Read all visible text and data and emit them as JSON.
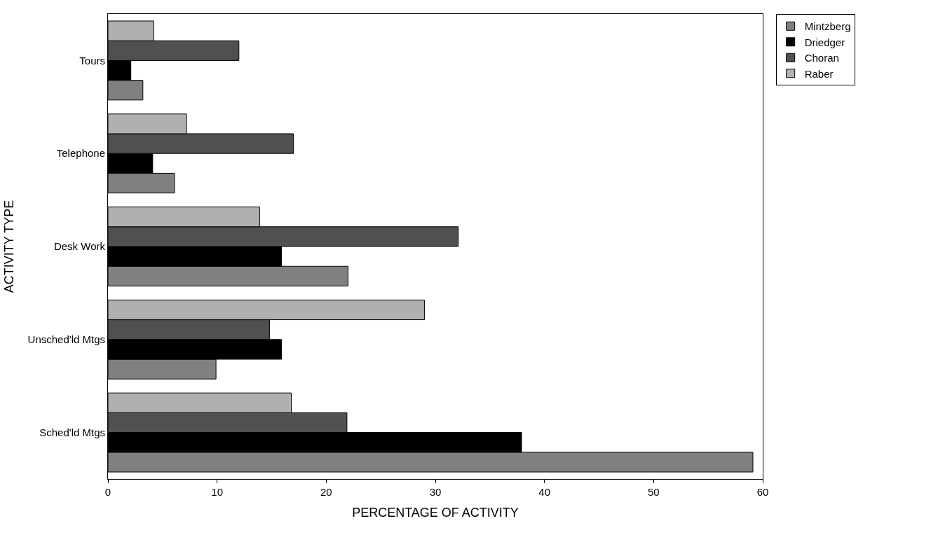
{
  "chart_data": {
    "type": "bar",
    "orientation": "horizontal",
    "xlabel": "PERCENTAGE OF ACTIVITY",
    "ylabel": "ACTIVITY TYPE",
    "categories": [
      "Tours",
      "Telephone",
      "Desk Work",
      "Unsched'ld Mtgs",
      "Sched'ld Mtgs"
    ],
    "series": [
      {
        "name": "Mintzberg",
        "color": "#808080",
        "values": [
          3.2,
          6.1,
          22.0,
          9.9,
          59.1
        ]
      },
      {
        "name": "Driedger",
        "color": "#000000",
        "values": [
          2.1,
          4.1,
          15.9,
          15.9,
          37.9
        ]
      },
      {
        "name": "Choran",
        "color": "#505050",
        "values": [
          12.0,
          17.0,
          32.1,
          14.8,
          21.9
        ]
      },
      {
        "name": "Raber",
        "color": "#b0b0b0",
        "values": [
          4.2,
          7.2,
          13.9,
          29.0,
          16.8
        ]
      }
    ],
    "xlim": [
      0,
      60
    ],
    "xticks": [
      0,
      {
        "value": 10,
        "label": "10"
      },
      20,
      {
        "value": 30,
        "label": "30"
      },
      40,
      {
        "value": 50,
        "label": "50"
      },
      60
    ],
    "legend": "right"
  }
}
